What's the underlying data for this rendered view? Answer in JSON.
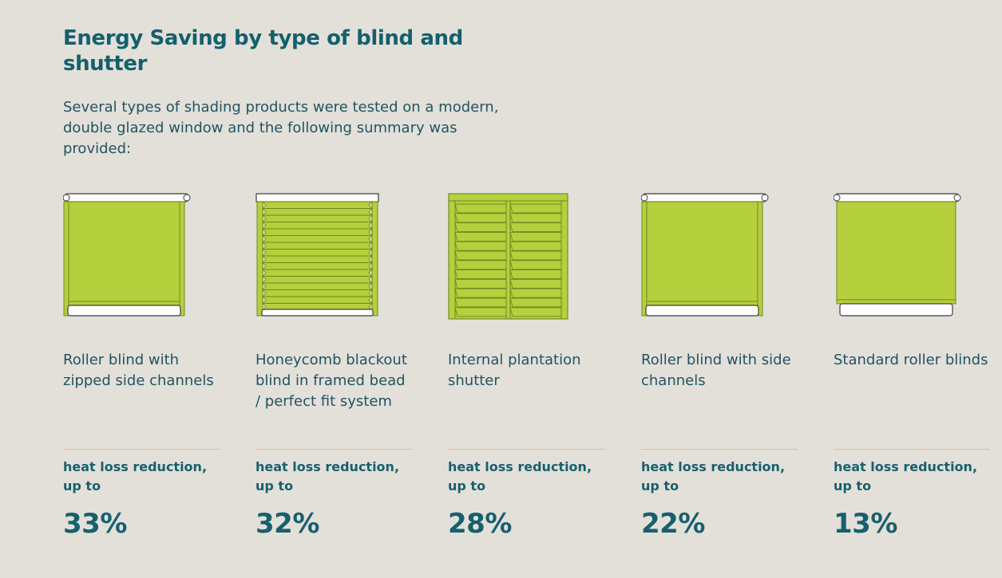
{
  "page": {
    "title": "Energy Saving by type of blind and shutter",
    "intro": "Several types of shading products were tested on a modern, double glazed window and the following summary was provided:"
  },
  "colors": {
    "background": "#e3e0d9",
    "heading": "#13606d",
    "fabric": "#b6cf3c",
    "fabric_outline": "#6b8a22",
    "divider": "#d2c58a"
  },
  "cards": [
    {
      "name": "Roller blind with zipped side channels",
      "metric": "heat loss reduction, up to",
      "value": "33%",
      "icon": "roller-blind-zipped-channels-icon"
    },
    {
      "name": "Honeycomb blackout blind in framed bead / perfect fit system",
      "metric": "heat loss reduction, up to",
      "value": "32%",
      "icon": "honeycomb-blind-icon"
    },
    {
      "name": "Internal plantation shutter",
      "metric": "heat loss reduction, up to",
      "value": "28%",
      "icon": "plantation-shutter-icon"
    },
    {
      "name": "Roller blind with side channels",
      "metric": "heat loss reduction, up to",
      "value": "22%",
      "icon": "roller-blind-side-channels-icon"
    },
    {
      "name": "Standard roller blinds",
      "metric": "heat loss reduction, up to",
      "value": "13%",
      "icon": "standard-roller-blind-icon"
    }
  ]
}
